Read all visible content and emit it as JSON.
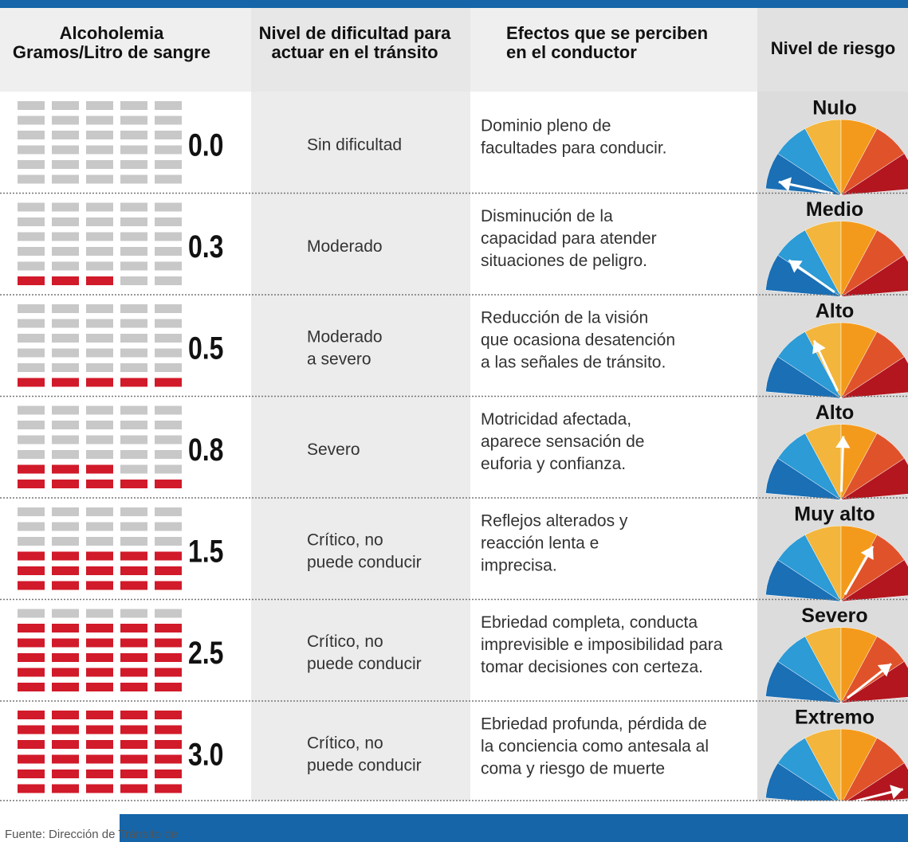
{
  "header": {
    "columns": [
      [
        "Alcoholemia",
        "Gramos/Litro de sangre"
      ],
      [
        "Nivel de dificultad para",
        "actuar en el tránsito"
      ],
      [
        "Efectos que se perciben",
        "en el conductor"
      ],
      [
        "Nivel de riesgo"
      ]
    ]
  },
  "rows": [
    {
      "level": "0.0",
      "difficulty": [
        "Sin dificultad"
      ],
      "effects": [
        "Dominio pleno de",
        "facultades para conducir."
      ],
      "risk": "Nulo"
    },
    {
      "level": "0.3",
      "difficulty": [
        "Moderado"
      ],
      "effects": [
        "Disminución de la",
        "capacidad para atender",
        "situaciones de peligro."
      ],
      "risk": "Medio"
    },
    {
      "level": "0.5",
      "difficulty": [
        "Moderado",
        "a severo"
      ],
      "effects": [
        "Reducción de la visión",
        "que ocasiona desatención",
        "a las señales de tránsito."
      ],
      "risk": "Alto"
    },
    {
      "level": "0.8",
      "difficulty": [
        "Severo"
      ],
      "effects": [
        "Motricidad afectada,",
        "aparece sensación de",
        "euforia y confianza."
      ],
      "risk": "Alto"
    },
    {
      "level": "1.5",
      "difficulty": [
        "Crítico, no",
        "puede conducir"
      ],
      "effects": [
        "Reflejos alterados y",
        "reacción lenta e",
        "imprecisa."
      ],
      "risk": "Muy alto"
    },
    {
      "level": "2.5",
      "difficulty": [
        "Crítico, no",
        "puede conducir"
      ],
      "effects": [
        "Ebriedad completa, conducta",
        "imprevisible e imposibilidad para",
        "tomar decisiones con certeza."
      ],
      "risk": "Severo"
    },
    {
      "level": "3.0",
      "difficulty": [
        "Crítico, no",
        "puede conducir"
      ],
      "effects": [
        "Ebriedad profunda, pérdida de",
        "la conciencia como antesala al",
        "coma y riesgo de muerte"
      ],
      "risk": "Extremo"
    }
  ],
  "footer": "Fuente: Dirección de Tránsito de"
}
